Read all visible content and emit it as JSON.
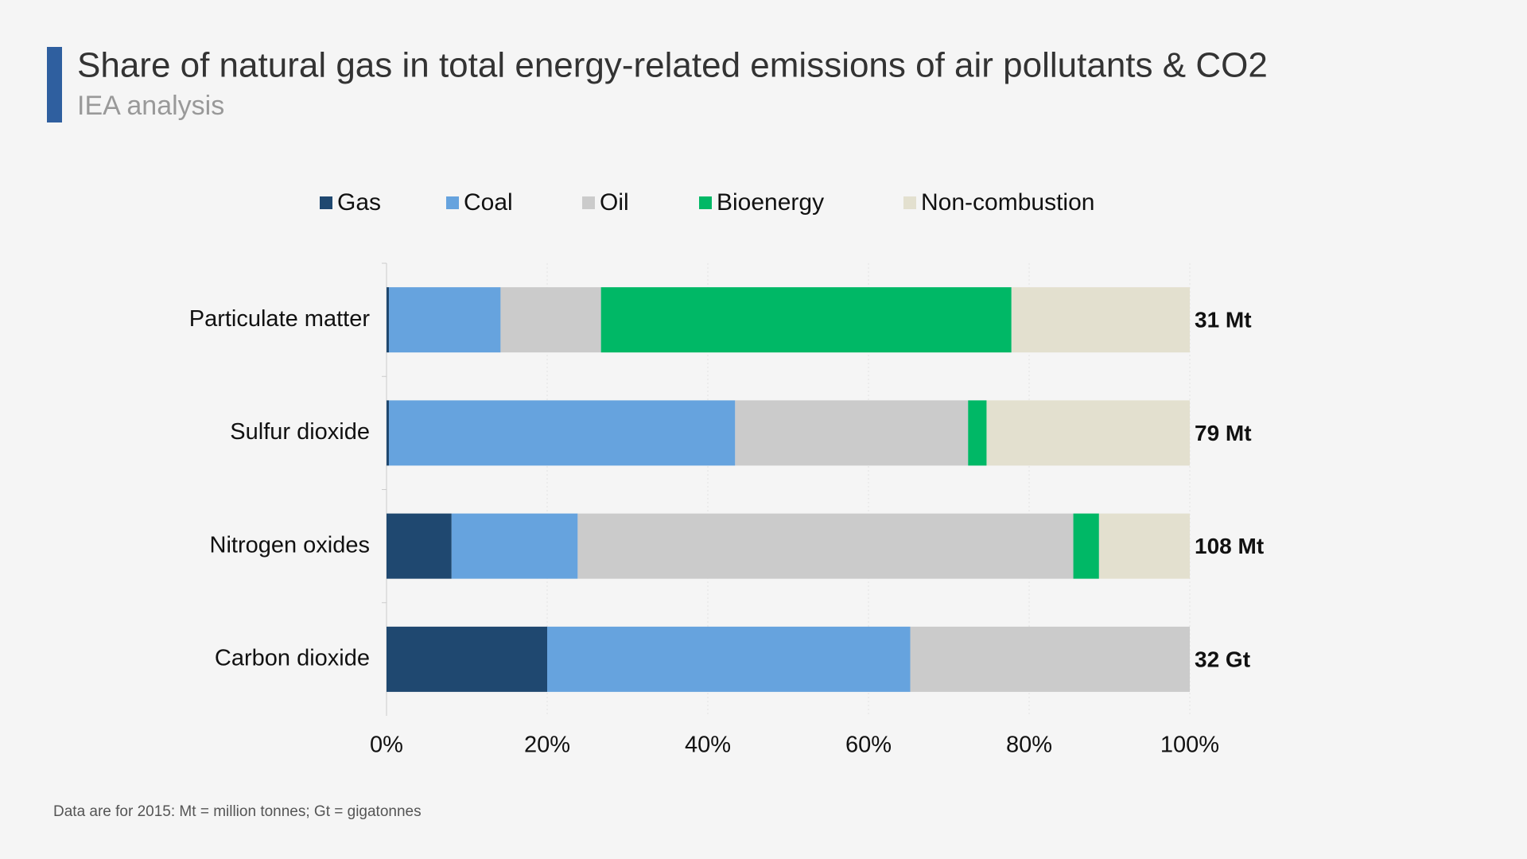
{
  "chart_data": {
    "type": "stacked-bar-horizontal",
    "title": "Share of natural gas in total energy-related emissions of air pollutants & CO2",
    "subtitle": "IEA analysis",
    "categories": [
      "Particulate matter",
      "Sulfur dioxide",
      "Nitrogen oxides",
      "Carbon dioxide"
    ],
    "series": [
      {
        "name": "Gas",
        "color": "#1f4870",
        "values": [
          0.3,
          0.3,
          8.1,
          20.0
        ]
      },
      {
        "name": "Coal",
        "color": "#66a3de",
        "values": [
          13.9,
          43.1,
          15.7,
          45.2
        ]
      },
      {
        "name": "Oil",
        "color": "#cbcbcb",
        "values": [
          12.5,
          29.0,
          61.7,
          34.8
        ]
      },
      {
        "name": "Bioenergy",
        "color": "#00b866",
        "values": [
          51.1,
          2.3,
          3.2,
          0
        ]
      },
      {
        "name": "Non-combustion",
        "color": "#e3e0cf",
        "values": [
          22.2,
          25.3,
          11.3,
          0
        ]
      }
    ],
    "totals": [
      "31 Mt",
      "79 Mt",
      "108 Mt",
      "32 Gt"
    ],
    "xlim": [
      0,
      100
    ],
    "xticks": [
      {
        "value": 0,
        "label": "0%"
      },
      {
        "value": 20,
        "label": "20%"
      },
      {
        "value": 40,
        "label": "40%"
      },
      {
        "value": 60,
        "label": "60%"
      },
      {
        "value": 80,
        "label": "80%"
      },
      {
        "value": 100,
        "label": "100%"
      }
    ],
    "grid": true,
    "legend": "top",
    "note": "Data are for 2015: Mt = million tonnes; Gt = gigatonnes"
  }
}
